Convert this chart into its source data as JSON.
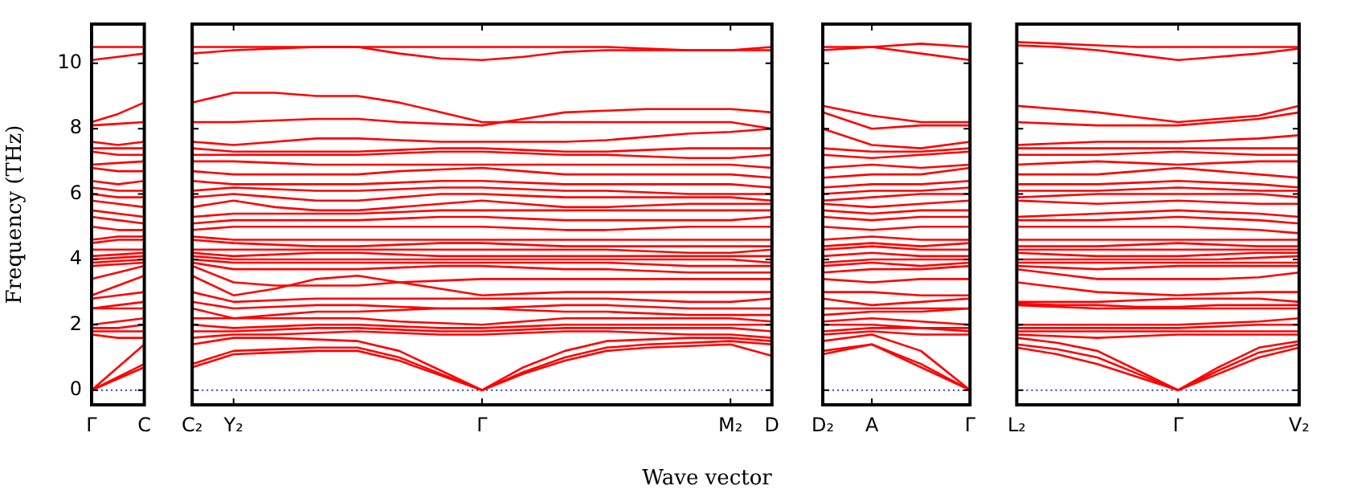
{
  "chart_data": [
    {
      "type": "line",
      "ylabel": "Frequency (THz)",
      "color": "#ff0000",
      "categories": [
        "Γ",
        null,
        "C"
      ],
      "ylim": [
        -0.45,
        11.2
      ],
      "yticks": [
        0,
        2,
        4,
        6,
        8,
        10
      ],
      "grid": false,
      "legend": false,
      "ref_lines": [
        {
          "axis": "y",
          "value": 0,
          "color": "#0000ff",
          "line_style": "dotted"
        }
      ],
      "series": [
        {
          "values": [
            0,
            0.35,
            0.7
          ]
        },
        {
          "values": [
            0,
            0.4,
            0.8
          ]
        },
        {
          "values": [
            0,
            0.7,
            1.4
          ]
        },
        {
          "values": [
            1.7,
            1.6,
            1.6
          ]
        },
        {
          "values": [
            1.8,
            1.8,
            1.8
          ]
        },
        {
          "values": [
            1.9,
            1.9,
            2.0
          ]
        },
        {
          "values": [
            2.0,
            2.1,
            2.2
          ]
        },
        {
          "values": [
            2.5,
            2.5,
            2.5
          ]
        },
        {
          "values": [
            2.5,
            2.6,
            2.7
          ]
        },
        {
          "values": [
            2.8,
            2.9,
            3.0
          ]
        },
        {
          "values": [
            2.9,
            3.2,
            3.5
          ]
        },
        {
          "values": [
            3.4,
            3.6,
            3.8
          ]
        },
        {
          "values": [
            3.8,
            3.85,
            3.9
          ]
        },
        {
          "values": [
            3.9,
            3.95,
            4.0
          ]
        },
        {
          "values": [
            4.0,
            4.05,
            4.1
          ]
        },
        {
          "values": [
            4.1,
            4.15,
            4.2
          ]
        },
        {
          "values": [
            4.3,
            4.3,
            4.3
          ]
        },
        {
          "values": [
            4.5,
            4.6,
            4.6
          ]
        },
        {
          "values": [
            4.6,
            4.7,
            4.7
          ]
        },
        {
          "values": [
            5.0,
            4.9,
            4.9
          ]
        },
        {
          "values": [
            5.3,
            5.2,
            5.1
          ]
        },
        {
          "values": [
            5.5,
            5.4,
            5.3
          ]
        },
        {
          "values": [
            5.8,
            5.7,
            5.6
          ]
        },
        {
          "values": [
            6.0,
            5.9,
            5.9
          ]
        },
        {
          "values": [
            6.2,
            6.1,
            6.1
          ]
        },
        {
          "values": [
            6.4,
            6.3,
            6.4
          ]
        },
        {
          "values": [
            6.8,
            6.7,
            6.7
          ]
        },
        {
          "values": [
            6.9,
            6.95,
            7.0
          ]
        },
        {
          "values": [
            7.3,
            7.2,
            7.2
          ]
        },
        {
          "values": [
            7.4,
            7.4,
            7.4
          ]
        },
        {
          "values": [
            7.6,
            7.5,
            7.6
          ]
        },
        {
          "values": [
            8.1,
            8.15,
            8.2
          ]
        },
        {
          "values": [
            8.2,
            8.45,
            8.8
          ]
        },
        {
          "values": [
            10.1,
            10.2,
            10.3
          ]
        },
        {
          "values": [
            10.5,
            10.5,
            10.5
          ]
        }
      ]
    },
    {
      "type": "line",
      "xlabel": "Wave vector",
      "color": "#ff0000",
      "categories": [
        "C₂",
        "Y₂",
        null,
        null,
        null,
        null,
        null,
        "Γ",
        null,
        null,
        null,
        null,
        null,
        "M₂",
        "D"
      ],
      "ylim": [
        -0.45,
        11.2
      ],
      "yticks": [
        0,
        2,
        4,
        6,
        8,
        10
      ],
      "tick_labels": "x",
      "grid": false,
      "legend": false,
      "ref_lines": [
        {
          "axis": "y",
          "value": 0,
          "color": "#0000ff",
          "line_style": "dotted"
        }
      ],
      "series": [
        {
          "values": [
            0.7,
            1.1,
            1.15,
            1.2,
            1.2,
            0.9,
            0.45,
            0,
            0.5,
            0.9,
            1.2,
            1.3,
            1.35,
            1.4,
            1.05
          ]
        },
        {
          "values": [
            0.8,
            1.2,
            1.25,
            1.3,
            1.3,
            1.0,
            0.5,
            0,
            0.55,
            1.0,
            1.3,
            1.4,
            1.45,
            1.5,
            1.4
          ]
        },
        {
          "values": [
            1.4,
            1.6,
            1.6,
            1.55,
            1.5,
            1.2,
            0.6,
            0,
            0.7,
            1.2,
            1.5,
            1.55,
            1.6,
            1.6,
            1.5
          ]
        },
        {
          "values": [
            1.6,
            1.7,
            1.7,
            1.75,
            1.8,
            1.75,
            1.7,
            1.7,
            1.75,
            1.8,
            1.8,
            1.75,
            1.7,
            1.7,
            1.6
          ]
        },
        {
          "values": [
            1.8,
            1.8,
            1.85,
            1.9,
            1.9,
            1.85,
            1.8,
            1.8,
            1.85,
            1.9,
            1.9,
            1.9,
            1.9,
            1.9,
            1.8
          ]
        },
        {
          "values": [
            2.0,
            1.9,
            1.95,
            2.0,
            2.0,
            1.95,
            1.9,
            1.9,
            1.95,
            2.0,
            2.0,
            2.0,
            2.0,
            2.0,
            2.0
          ]
        },
        {
          "values": [
            2.2,
            2.2,
            2.2,
            2.2,
            2.2,
            2.1,
            2.05,
            2.0,
            2.1,
            2.2,
            2.2,
            2.2,
            2.2,
            2.2,
            2.1
          ]
        },
        {
          "values": [
            2.5,
            2.2,
            2.3,
            2.4,
            2.4,
            2.45,
            2.5,
            2.5,
            2.45,
            2.4,
            2.4,
            2.35,
            2.3,
            2.3,
            2.3
          ]
        },
        {
          "values": [
            2.7,
            2.5,
            2.55,
            2.6,
            2.6,
            2.55,
            2.5,
            2.5,
            2.55,
            2.6,
            2.6,
            2.55,
            2.5,
            2.5,
            2.5
          ]
        },
        {
          "values": [
            3.0,
            2.7,
            2.75,
            2.8,
            2.8,
            2.8,
            2.8,
            2.8,
            2.8,
            2.8,
            2.8,
            2.75,
            2.7,
            2.7,
            2.8
          ]
        },
        {
          "values": [
            3.5,
            2.9,
            3.1,
            3.4,
            3.5,
            3.3,
            3.1,
            2.9,
            2.95,
            3.0,
            3.0,
            3.0,
            3.0,
            3.0,
            3.0
          ]
        },
        {
          "values": [
            3.8,
            3.3,
            3.2,
            3.2,
            3.2,
            3.3,
            3.35,
            3.4,
            3.4,
            3.4,
            3.4,
            3.4,
            3.4,
            3.4,
            3.4
          ]
        },
        {
          "values": [
            3.9,
            3.7,
            3.7,
            3.7,
            3.7,
            3.75,
            3.8,
            3.8,
            3.75,
            3.7,
            3.7,
            3.65,
            3.6,
            3.6,
            3.6
          ]
        },
        {
          "values": [
            4.0,
            3.9,
            3.9,
            3.9,
            3.9,
            3.9,
            3.9,
            3.9,
            3.9,
            3.9,
            3.9,
            3.85,
            3.8,
            3.8,
            3.8
          ]
        },
        {
          "values": [
            4.1,
            4.0,
            4.0,
            4.0,
            4.0,
            4.0,
            4.0,
            4.0,
            4.0,
            4.0,
            4.0,
            4.0,
            4.0,
            4.0,
            3.9
          ]
        },
        {
          "values": [
            4.2,
            4.1,
            4.15,
            4.2,
            4.2,
            4.15,
            4.1,
            4.1,
            4.1,
            4.1,
            4.1,
            4.1,
            4.1,
            4.1,
            4.1
          ]
        },
        {
          "values": [
            4.3,
            4.3,
            4.3,
            4.3,
            4.3,
            4.3,
            4.3,
            4.3,
            4.3,
            4.3,
            4.3,
            4.25,
            4.2,
            4.2,
            4.3
          ]
        },
        {
          "values": [
            4.6,
            4.5,
            4.45,
            4.4,
            4.4,
            4.45,
            4.5,
            4.5,
            4.45,
            4.4,
            4.4,
            4.4,
            4.4,
            4.4,
            4.4
          ]
        },
        {
          "values": [
            4.7,
            4.6,
            4.6,
            4.6,
            4.6,
            4.6,
            4.6,
            4.6,
            4.6,
            4.6,
            4.6,
            4.6,
            4.6,
            4.6,
            4.6
          ]
        },
        {
          "values": [
            4.9,
            5.0,
            5.0,
            5.0,
            5.0,
            5.0,
            5.0,
            5.0,
            4.95,
            4.9,
            4.9,
            4.95,
            5.0,
            5.0,
            5.0
          ]
        },
        {
          "values": [
            5.1,
            5.2,
            5.2,
            5.2,
            5.2,
            5.25,
            5.3,
            5.3,
            5.25,
            5.2,
            5.2,
            5.2,
            5.2,
            5.2,
            5.3
          ]
        },
        {
          "values": [
            5.3,
            5.4,
            5.4,
            5.4,
            5.4,
            5.45,
            5.5,
            5.5,
            5.5,
            5.5,
            5.5,
            5.5,
            5.5,
            5.5,
            5.5
          ]
        },
        {
          "values": [
            5.6,
            5.8,
            5.6,
            5.5,
            5.5,
            5.6,
            5.7,
            5.8,
            5.7,
            5.6,
            5.6,
            5.65,
            5.7,
            5.7,
            5.7
          ]
        },
        {
          "values": [
            5.9,
            6.0,
            5.9,
            5.8,
            5.8,
            5.9,
            6.0,
            6.0,
            5.95,
            5.9,
            5.9,
            5.9,
            5.9,
            5.9,
            5.8
          ]
        },
        {
          "values": [
            6.1,
            6.2,
            6.15,
            6.1,
            6.1,
            6.15,
            6.2,
            6.2,
            6.15,
            6.1,
            6.1,
            6.05,
            6.0,
            6.0,
            6.0
          ]
        },
        {
          "values": [
            6.4,
            6.3,
            6.3,
            6.3,
            6.3,
            6.35,
            6.4,
            6.4,
            6.35,
            6.3,
            6.3,
            6.3,
            6.3,
            6.3,
            6.2
          ]
        },
        {
          "values": [
            6.7,
            6.6,
            6.6,
            6.6,
            6.6,
            6.7,
            6.75,
            6.8,
            6.7,
            6.6,
            6.6,
            6.6,
            6.6,
            6.6,
            6.5
          ]
        },
        {
          "values": [
            7.0,
            7.0,
            6.95,
            6.9,
            6.9,
            6.9,
            6.9,
            6.9,
            6.9,
            6.9,
            6.9,
            6.9,
            6.9,
            6.9,
            6.8
          ]
        },
        {
          "values": [
            7.2,
            7.2,
            7.2,
            7.2,
            7.2,
            7.25,
            7.3,
            7.3,
            7.25,
            7.2,
            7.2,
            7.15,
            7.1,
            7.1,
            7.2
          ]
        },
        {
          "values": [
            7.4,
            7.3,
            7.3,
            7.3,
            7.3,
            7.35,
            7.4,
            7.4,
            7.35,
            7.3,
            7.3,
            7.35,
            7.4,
            7.4,
            7.4
          ]
        },
        {
          "values": [
            7.6,
            7.5,
            7.6,
            7.7,
            7.7,
            7.65,
            7.6,
            7.6,
            7.6,
            7.6,
            7.65,
            7.75,
            7.85,
            7.9,
            8.0
          ]
        },
        {
          "values": [
            8.2,
            8.2,
            8.25,
            8.3,
            8.3,
            8.2,
            8.15,
            8.1,
            8.3,
            8.5,
            8.55,
            8.6,
            8.6,
            8.6,
            8.5
          ]
        },
        {
          "values": [
            8.8,
            9.1,
            9.1,
            9.0,
            9.0,
            8.8,
            8.5,
            8.2,
            8.2,
            8.2,
            8.2,
            8.2,
            8.2,
            8.2,
            8.0
          ]
        },
        {
          "values": [
            10.3,
            10.4,
            10.45,
            10.5,
            10.5,
            10.3,
            10.15,
            10.1,
            10.2,
            10.35,
            10.4,
            10.4,
            10.4,
            10.4,
            10.4
          ]
        },
        {
          "values": [
            10.5,
            10.5,
            10.5,
            10.5,
            10.5,
            10.5,
            10.5,
            10.5,
            10.5,
            10.5,
            10.5,
            10.45,
            10.4,
            10.4,
            10.5
          ]
        }
      ]
    },
    {
      "type": "line",
      "color": "#ff0000",
      "categories": [
        "D₂",
        "A",
        null,
        "Γ"
      ],
      "ylim": [
        -0.45,
        11.2
      ],
      "yticks": [
        0,
        2,
        4,
        6,
        8,
        10
      ],
      "tick_labels": "x",
      "grid": false,
      "legend": false,
      "ref_lines": [
        {
          "axis": "y",
          "value": 0,
          "color": "#0000ff",
          "line_style": "dotted"
        }
      ],
      "series": [
        {
          "values": [
            1.1,
            1.4,
            0.7,
            0
          ]
        },
        {
          "values": [
            1.2,
            1.4,
            0.8,
            0
          ]
        },
        {
          "values": [
            1.5,
            1.7,
            1.2,
            0
          ]
        },
        {
          "values": [
            1.7,
            1.8,
            1.7,
            1.7
          ]
        },
        {
          "values": [
            1.8,
            1.9,
            1.9,
            1.8
          ]
        },
        {
          "values": [
            2.0,
            2.0,
            1.9,
            1.9
          ]
        },
        {
          "values": [
            2.1,
            2.2,
            2.1,
            2.0
          ]
        },
        {
          "values": [
            2.3,
            2.4,
            2.4,
            2.5
          ]
        },
        {
          "values": [
            2.5,
            2.5,
            2.5,
            2.5
          ]
        },
        {
          "values": [
            2.8,
            2.6,
            2.7,
            2.8
          ]
        },
        {
          "values": [
            3.0,
            3.0,
            2.9,
            2.9
          ]
        },
        {
          "values": [
            3.4,
            3.3,
            3.4,
            3.4
          ]
        },
        {
          "values": [
            3.6,
            3.7,
            3.7,
            3.8
          ]
        },
        {
          "values": [
            3.8,
            3.9,
            3.8,
            3.9
          ]
        },
        {
          "values": [
            3.9,
            4.0,
            4.0,
            4.0
          ]
        },
        {
          "values": [
            4.1,
            4.2,
            4.1,
            4.1
          ]
        },
        {
          "values": [
            4.3,
            4.4,
            4.3,
            4.3
          ]
        },
        {
          "values": [
            4.4,
            4.5,
            4.4,
            4.5
          ]
        },
        {
          "values": [
            4.6,
            4.7,
            4.6,
            4.6
          ]
        },
        {
          "values": [
            5.0,
            4.9,
            5.0,
            5.0
          ]
        },
        {
          "values": [
            5.3,
            5.2,
            5.3,
            5.3
          ]
        },
        {
          "values": [
            5.5,
            5.4,
            5.5,
            5.5
          ]
        },
        {
          "values": [
            5.7,
            5.6,
            5.7,
            5.8
          ]
        },
        {
          "values": [
            5.8,
            5.9,
            6.0,
            6.0
          ]
        },
        {
          "values": [
            6.0,
            6.1,
            6.1,
            6.2
          ]
        },
        {
          "values": [
            6.2,
            6.3,
            6.3,
            6.4
          ]
        },
        {
          "values": [
            6.5,
            6.6,
            6.6,
            6.8
          ]
        },
        {
          "values": [
            6.8,
            6.9,
            6.8,
            6.9
          ]
        },
        {
          "values": [
            7.2,
            7.1,
            7.2,
            7.3
          ]
        },
        {
          "values": [
            7.4,
            7.3,
            7.3,
            7.4
          ]
        },
        {
          "values": [
            8.0,
            7.5,
            7.4,
            7.6
          ]
        },
        {
          "values": [
            8.5,
            8.0,
            8.1,
            8.1
          ]
        },
        {
          "values": [
            8.7,
            8.4,
            8.2,
            8.2
          ]
        },
        {
          "values": [
            10.4,
            10.5,
            10.3,
            10.1
          ]
        },
        {
          "values": [
            10.5,
            10.5,
            10.6,
            10.5
          ]
        }
      ]
    },
    {
      "type": "line",
      "color": "#ff0000",
      "categories": [
        "L₂",
        null,
        null,
        null,
        "Γ",
        null,
        null,
        "V₂"
      ],
      "ylim": [
        -0.45,
        11.2
      ],
      "yticks": [
        0,
        2,
        4,
        6,
        8,
        10
      ],
      "tick_labels": "x",
      "grid": false,
      "legend": false,
      "ref_lines": [
        {
          "axis": "y",
          "value": 0,
          "color": "#0000ff",
          "line_style": "dotted"
        }
      ],
      "series": [
        {
          "values": [
            1.3,
            1.1,
            0.8,
            0.4,
            0,
            0.5,
            1.0,
            1.3
          ]
        },
        {
          "values": [
            1.4,
            1.25,
            1.0,
            0.5,
            0,
            0.6,
            1.15,
            1.4
          ]
        },
        {
          "values": [
            1.6,
            1.45,
            1.2,
            0.6,
            0,
            0.7,
            1.3,
            1.5
          ]
        },
        {
          "values": [
            1.7,
            1.65,
            1.6,
            1.65,
            1.7,
            1.7,
            1.7,
            1.7
          ]
        },
        {
          "values": [
            1.8,
            1.8,
            1.8,
            1.8,
            1.8,
            1.8,
            1.8,
            1.8
          ]
        },
        {
          "values": [
            1.9,
            1.9,
            1.9,
            1.9,
            1.9,
            1.95,
            2.0,
            2.0
          ]
        },
        {
          "values": [
            2.0,
            2.0,
            2.0,
            2.0,
            2.0,
            2.05,
            2.1,
            2.2
          ]
        },
        {
          "values": [
            2.6,
            2.55,
            2.5,
            2.5,
            2.5,
            2.5,
            2.5,
            2.5
          ]
        },
        {
          "values": [
            2.65,
            2.6,
            2.6,
            2.55,
            2.55,
            2.6,
            2.6,
            2.6
          ]
        },
        {
          "values": [
            2.7,
            2.7,
            2.7,
            2.75,
            2.8,
            2.8,
            2.8,
            2.7
          ]
        },
        {
          "values": [
            3.3,
            3.15,
            3.0,
            2.95,
            2.9,
            2.95,
            3.0,
            3.0
          ]
        },
        {
          "values": [
            3.7,
            3.55,
            3.4,
            3.4,
            3.4,
            3.4,
            3.45,
            3.6
          ]
        },
        {
          "values": [
            3.8,
            3.75,
            3.7,
            3.75,
            3.8,
            3.8,
            3.8,
            3.8
          ]
        },
        {
          "values": [
            3.9,
            3.9,
            3.9,
            3.9,
            3.9,
            3.9,
            3.9,
            3.9
          ]
        },
        {
          "values": [
            4.0,
            4.0,
            4.0,
            4.0,
            4.0,
            4.0,
            4.05,
            4.1
          ]
        },
        {
          "values": [
            4.2,
            4.15,
            4.1,
            4.1,
            4.1,
            4.15,
            4.2,
            4.2
          ]
        },
        {
          "values": [
            4.3,
            4.3,
            4.3,
            4.3,
            4.3,
            4.3,
            4.3,
            4.3
          ]
        },
        {
          "values": [
            4.4,
            4.4,
            4.4,
            4.45,
            4.5,
            4.45,
            4.4,
            4.4
          ]
        },
        {
          "values": [
            4.6,
            4.6,
            4.6,
            4.6,
            4.6,
            4.6,
            4.6,
            4.6
          ]
        },
        {
          "values": [
            5.0,
            5.0,
            5.0,
            5.0,
            5.0,
            4.95,
            4.9,
            4.8
          ]
        },
        {
          "values": [
            5.2,
            5.2,
            5.2,
            5.25,
            5.3,
            5.25,
            5.2,
            5.1
          ]
        },
        {
          "values": [
            5.3,
            5.35,
            5.4,
            5.45,
            5.5,
            5.45,
            5.4,
            5.3
          ]
        },
        {
          "values": [
            5.8,
            5.75,
            5.7,
            5.75,
            5.8,
            5.75,
            5.7,
            5.7
          ]
        },
        {
          "values": [
            5.9,
            5.95,
            6.0,
            6.0,
            6.0,
            6.0,
            6.0,
            5.9
          ]
        },
        {
          "values": [
            6.1,
            6.1,
            6.1,
            6.15,
            6.2,
            6.15,
            6.1,
            6.1
          ]
        },
        {
          "values": [
            6.3,
            6.3,
            6.3,
            6.35,
            6.4,
            6.35,
            6.3,
            6.2
          ]
        },
        {
          "values": [
            6.6,
            6.6,
            6.6,
            6.7,
            6.8,
            6.7,
            6.6,
            6.5
          ]
        },
        {
          "values": [
            6.9,
            6.95,
            7.0,
            6.95,
            6.9,
            6.95,
            7.0,
            7.0
          ]
        },
        {
          "values": [
            7.2,
            7.2,
            7.2,
            7.25,
            7.3,
            7.25,
            7.2,
            7.2
          ]
        },
        {
          "values": [
            7.4,
            7.4,
            7.4,
            7.4,
            7.4,
            7.4,
            7.4,
            7.4
          ]
        },
        {
          "values": [
            7.5,
            7.55,
            7.6,
            7.6,
            7.6,
            7.65,
            7.7,
            7.8
          ]
        },
        {
          "values": [
            8.2,
            8.15,
            8.1,
            8.1,
            8.1,
            8.2,
            8.3,
            8.5
          ]
        },
        {
          "values": [
            8.7,
            8.6,
            8.5,
            8.35,
            8.2,
            8.3,
            8.4,
            8.7
          ]
        },
        {
          "values": [
            10.55,
            10.5,
            10.4,
            10.25,
            10.1,
            10.2,
            10.3,
            10.45
          ]
        },
        {
          "values": [
            10.65,
            10.6,
            10.55,
            10.5,
            10.5,
            10.5,
            10.5,
            10.5
          ]
        }
      ]
    }
  ]
}
